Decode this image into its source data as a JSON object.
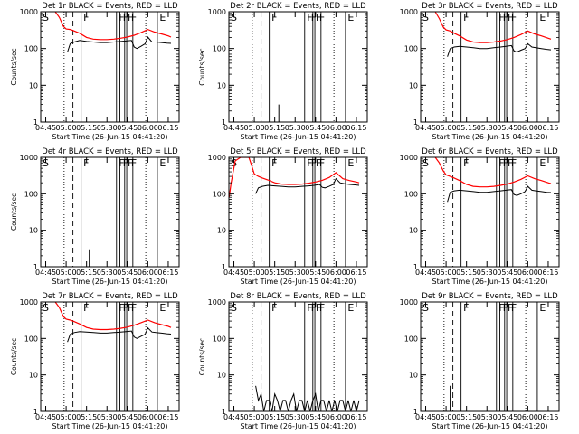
{
  "figure": {
    "y_axis_label": "Counts/sec",
    "x_axis_title": "Start Time (26-Jun-15 04:41:20)",
    "x_tick_labels": [
      "04:45",
      "05:00",
      "05:15",
      "05:30",
      "05:45",
      "06:00",
      "06:15"
    ],
    "y_tick_labels": [
      "1",
      "10",
      "100",
      "1000"
    ],
    "marker_labels": [
      "S",
      "F",
      "F",
      "F",
      "F",
      "F",
      "E"
    ],
    "colors": {
      "events": "#000000",
      "lld": "#ff0000",
      "axes": "#000000"
    }
  },
  "chart_data": [
    {
      "type": "line",
      "title": "Det 1r BLACK = Events, RED = LLD",
      "xlim": [
        "04:41:20",
        "06:23:00"
      ],
      "ylim": [
        1,
        1000
      ],
      "log_y": true,
      "series": [
        {
          "color": "#000000",
          "x": [
            "05:01",
            "05:03",
            "05:06",
            "05:10",
            "05:15",
            "05:20",
            "05:25",
            "05:30",
            "05:35",
            "05:40",
            "05:44",
            "05:48",
            "05:50",
            "05:52",
            "05:55",
            "05:58",
            "06:00",
            "06:03",
            "06:06",
            "06:10",
            "06:14",
            "06:17"
          ],
          "values": [
            80,
            135,
            150,
            165,
            155,
            150,
            145,
            145,
            150,
            155,
            160,
            165,
            110,
            100,
            115,
            135,
            205,
            150,
            150,
            145,
            140,
            138
          ]
        },
        {
          "color": "#ff0000",
          "x": [
            "04:52",
            "04:55",
            "04:58",
            "05:00",
            "05:03",
            "05:06",
            "05:10",
            "05:15",
            "05:20",
            "05:25",
            "05:30",
            "05:35",
            "05:40",
            "05:45",
            "05:50",
            "05:55",
            "06:00",
            "06:05",
            "06:10",
            "06:15",
            "06:17"
          ],
          "values": [
            1000,
            700,
            400,
            340,
            330,
            300,
            260,
            200,
            180,
            175,
            175,
            180,
            190,
            205,
            230,
            270,
            330,
            280,
            250,
            220,
            205
          ]
        }
      ]
    },
    {
      "type": "line",
      "title": "Det 2r BLACK = Events, RED = LLD",
      "xlim": [
        "04:41:20",
        "06:23:00"
      ],
      "ylim": [
        1,
        1000
      ],
      "log_y": true,
      "series": [
        {
          "color": "#000000",
          "x": [
            "05:18",
            "05:18",
            "05:18"
          ],
          "values": [
            1,
            3,
            1
          ]
        }
      ]
    },
    {
      "type": "line",
      "title": "Det 3r BLACK = Events, RED = LLD",
      "xlim": [
        "04:41:20",
        "06:23:00"
      ],
      "ylim": [
        1,
        1000
      ],
      "log_y": true,
      "series": [
        {
          "color": "#000000",
          "x": [
            "05:01",
            "05:03",
            "05:06",
            "05:10",
            "05:15",
            "05:20",
            "05:25",
            "05:30",
            "05:35",
            "05:40",
            "05:44",
            "05:48",
            "05:50",
            "05:52",
            "05:55",
            "05:58",
            "06:00",
            "06:03",
            "06:06",
            "06:10",
            "06:14",
            "06:17"
          ],
          "values": [
            60,
            100,
            110,
            115,
            110,
            105,
            100,
            100,
            105,
            110,
            115,
            120,
            85,
            80,
            90,
            100,
            135,
            110,
            105,
            100,
            95,
            92
          ]
        },
        {
          "color": "#ff0000",
          "x": [
            "04:52",
            "04:55",
            "04:58",
            "05:00",
            "05:03",
            "05:06",
            "05:10",
            "05:15",
            "05:20",
            "05:25",
            "05:30",
            "05:35",
            "05:40",
            "05:45",
            "05:50",
            "05:55",
            "06:00",
            "06:05",
            "06:10",
            "06:15",
            "06:17"
          ],
          "values": [
            1000,
            650,
            380,
            320,
            300,
            260,
            220,
            170,
            150,
            145,
            145,
            150,
            160,
            175,
            200,
            240,
            300,
            250,
            220,
            190,
            180
          ]
        }
      ]
    },
    {
      "type": "line",
      "title": "Det 4r BLACK = Events, RED = LLD",
      "xlim": [
        "04:41:20",
        "06:23:00"
      ],
      "ylim": [
        1,
        1000
      ],
      "log_y": true,
      "series": [
        {
          "color": "#000000",
          "x": [
            "05:17",
            "05:17",
            "05:17"
          ],
          "values": [
            1,
            3,
            1
          ]
        }
      ]
    },
    {
      "type": "line",
      "title": "Det 5r BLACK = Events, RED = LLD",
      "xlim": [
        "04:41:20",
        "06:23:00"
      ],
      "ylim": [
        1,
        1000
      ],
      "log_y": true,
      "series": [
        {
          "color": "#000000",
          "x": [
            "05:01",
            "05:03",
            "05:06",
            "05:10",
            "05:15",
            "05:20",
            "05:25",
            "05:30",
            "05:35",
            "05:40",
            "05:44",
            "05:48",
            "05:50",
            "05:52",
            "05:55",
            "05:58",
            "06:00",
            "06:03",
            "06:06",
            "06:10",
            "06:14",
            "06:17"
          ],
          "values": [
            100,
            145,
            160,
            170,
            165,
            160,
            155,
            155,
            160,
            165,
            170,
            180,
            150,
            145,
            160,
            180,
            260,
            200,
            190,
            180,
            175,
            170
          ]
        },
        {
          "color": "#ff0000",
          "x": [
            "04:41:30",
            "04:43",
            "04:46",
            "04:50",
            "04:53",
            "04:56",
            "04:58",
            "05:00",
            "05:03",
            "05:06",
            "05:10",
            "05:15",
            "05:20",
            "05:25",
            "05:30",
            "05:35",
            "05:40",
            "05:45",
            "05:50",
            "05:55",
            "06:00",
            "06:05",
            "06:10",
            "06:15",
            "06:17"
          ],
          "values": [
            80,
            200,
            800,
            1000,
            1000,
            1000,
            600,
            350,
            300,
            270,
            240,
            200,
            185,
            180,
            180,
            185,
            195,
            210,
            235,
            280,
            380,
            260,
            230,
            210,
            200
          ]
        }
      ]
    },
    {
      "type": "line",
      "title": "Det 6r BLACK = Events, RED = LLD",
      "xlim": [
        "04:41:20",
        "06:23:00"
      ],
      "ylim": [
        1,
        1000
      ],
      "log_y": true,
      "series": [
        {
          "color": "#000000",
          "x": [
            "05:01",
            "05:03",
            "05:06",
            "05:10",
            "05:15",
            "05:20",
            "05:25",
            "05:30",
            "05:35",
            "05:40",
            "05:44",
            "05:48",
            "05:50",
            "05:52",
            "05:55",
            "05:58",
            "06:00",
            "06:03",
            "06:06",
            "06:10",
            "06:14",
            "06:17"
          ],
          "values": [
            60,
            110,
            120,
            125,
            120,
            115,
            110,
            110,
            115,
            120,
            125,
            130,
            95,
            90,
            100,
            115,
            160,
            125,
            120,
            115,
            110,
            108
          ]
        },
        {
          "color": "#ff0000",
          "x": [
            "04:52",
            "04:55",
            "04:58",
            "05:00",
            "05:03",
            "05:06",
            "05:10",
            "05:15",
            "05:20",
            "05:25",
            "05:30",
            "05:35",
            "05:40",
            "05:45",
            "05:50",
            "05:55",
            "06:00",
            "06:05",
            "06:10",
            "06:15",
            "06:17"
          ],
          "values": [
            1000,
            700,
            420,
            330,
            300,
            270,
            230,
            180,
            160,
            155,
            155,
            160,
            170,
            185,
            210,
            250,
            310,
            260,
            230,
            200,
            190
          ]
        }
      ]
    },
    {
      "type": "line",
      "title": "Det 7r BLACK = Events, RED = LLD",
      "xlim": [
        "04:41:20",
        "06:23:00"
      ],
      "ylim": [
        1,
        1000
      ],
      "log_y": true,
      "series": [
        {
          "color": "#000000",
          "x": [
            "05:01",
            "05:03",
            "05:06",
            "05:10",
            "05:15",
            "05:20",
            "05:25",
            "05:30",
            "05:35",
            "05:40",
            "05:44",
            "05:48",
            "05:50",
            "05:52",
            "05:55",
            "05:58",
            "06:00",
            "06:03",
            "06:06",
            "06:10",
            "06:14",
            "06:17"
          ],
          "values": [
            80,
            130,
            145,
            155,
            150,
            145,
            140,
            140,
            145,
            150,
            155,
            160,
            110,
            100,
            115,
            130,
            195,
            150,
            145,
            140,
            135,
            132
          ]
        },
        {
          "color": "#ff0000",
          "x": [
            "04:52",
            "04:55",
            "04:58",
            "05:00",
            "05:03",
            "05:06",
            "05:10",
            "05:15",
            "05:20",
            "05:25",
            "05:30",
            "05:35",
            "05:40",
            "05:45",
            "05:50",
            "05:55",
            "06:00",
            "06:05",
            "06:10",
            "06:15",
            "06:17"
          ],
          "values": [
            1000,
            700,
            400,
            340,
            320,
            290,
            250,
            200,
            180,
            175,
            175,
            180,
            190,
            205,
            230,
            270,
            320,
            270,
            240,
            215,
            200
          ]
        }
      ]
    },
    {
      "type": "line",
      "title": "Det 8r BLACK = Events, RED = LLD",
      "xlim": [
        "04:41:20",
        "06:23:00"
      ],
      "ylim": [
        1,
        1000
      ],
      "log_y": true,
      "series": [
        {
          "color": "#000000",
          "x": [
            "05:01",
            "05:03",
            "05:05",
            "05:07",
            "05:09",
            "05:11",
            "05:13",
            "05:15",
            "05:17",
            "05:19",
            "05:21",
            "05:23",
            "05:25",
            "05:27",
            "05:29",
            "05:31",
            "05:33",
            "05:35",
            "05:37",
            "05:39",
            "05:41",
            "05:43",
            "05:45",
            "05:47",
            "05:49",
            "05:51",
            "05:53",
            "05:55",
            "05:57",
            "05:59",
            "06:01",
            "06:03",
            "06:05",
            "06:07",
            "06:09",
            "06:11",
            "06:13",
            "06:15",
            "06:17"
          ],
          "values": [
            5,
            2,
            3,
            1,
            2,
            2,
            1,
            3,
            2,
            1,
            2,
            2,
            1,
            2,
            3,
            1,
            2,
            2,
            1,
            2,
            1,
            2,
            3,
            1,
            2,
            2,
            1,
            2,
            1,
            2,
            1,
            2,
            2,
            1,
            2,
            1,
            2,
            1,
            2
          ]
        }
      ]
    },
    {
      "type": "line",
      "title": "Det 9r BLACK = Events, RED = LLD",
      "xlim": [
        "04:41:20",
        "06:23:00"
      ],
      "ylim": [
        1,
        1000
      ],
      "log_y": true,
      "series": [
        {
          "color": "#000000",
          "x": [
            "05:03",
            "05:03",
            "05:03"
          ],
          "values": [
            1,
            5,
            1
          ]
        }
      ]
    }
  ]
}
